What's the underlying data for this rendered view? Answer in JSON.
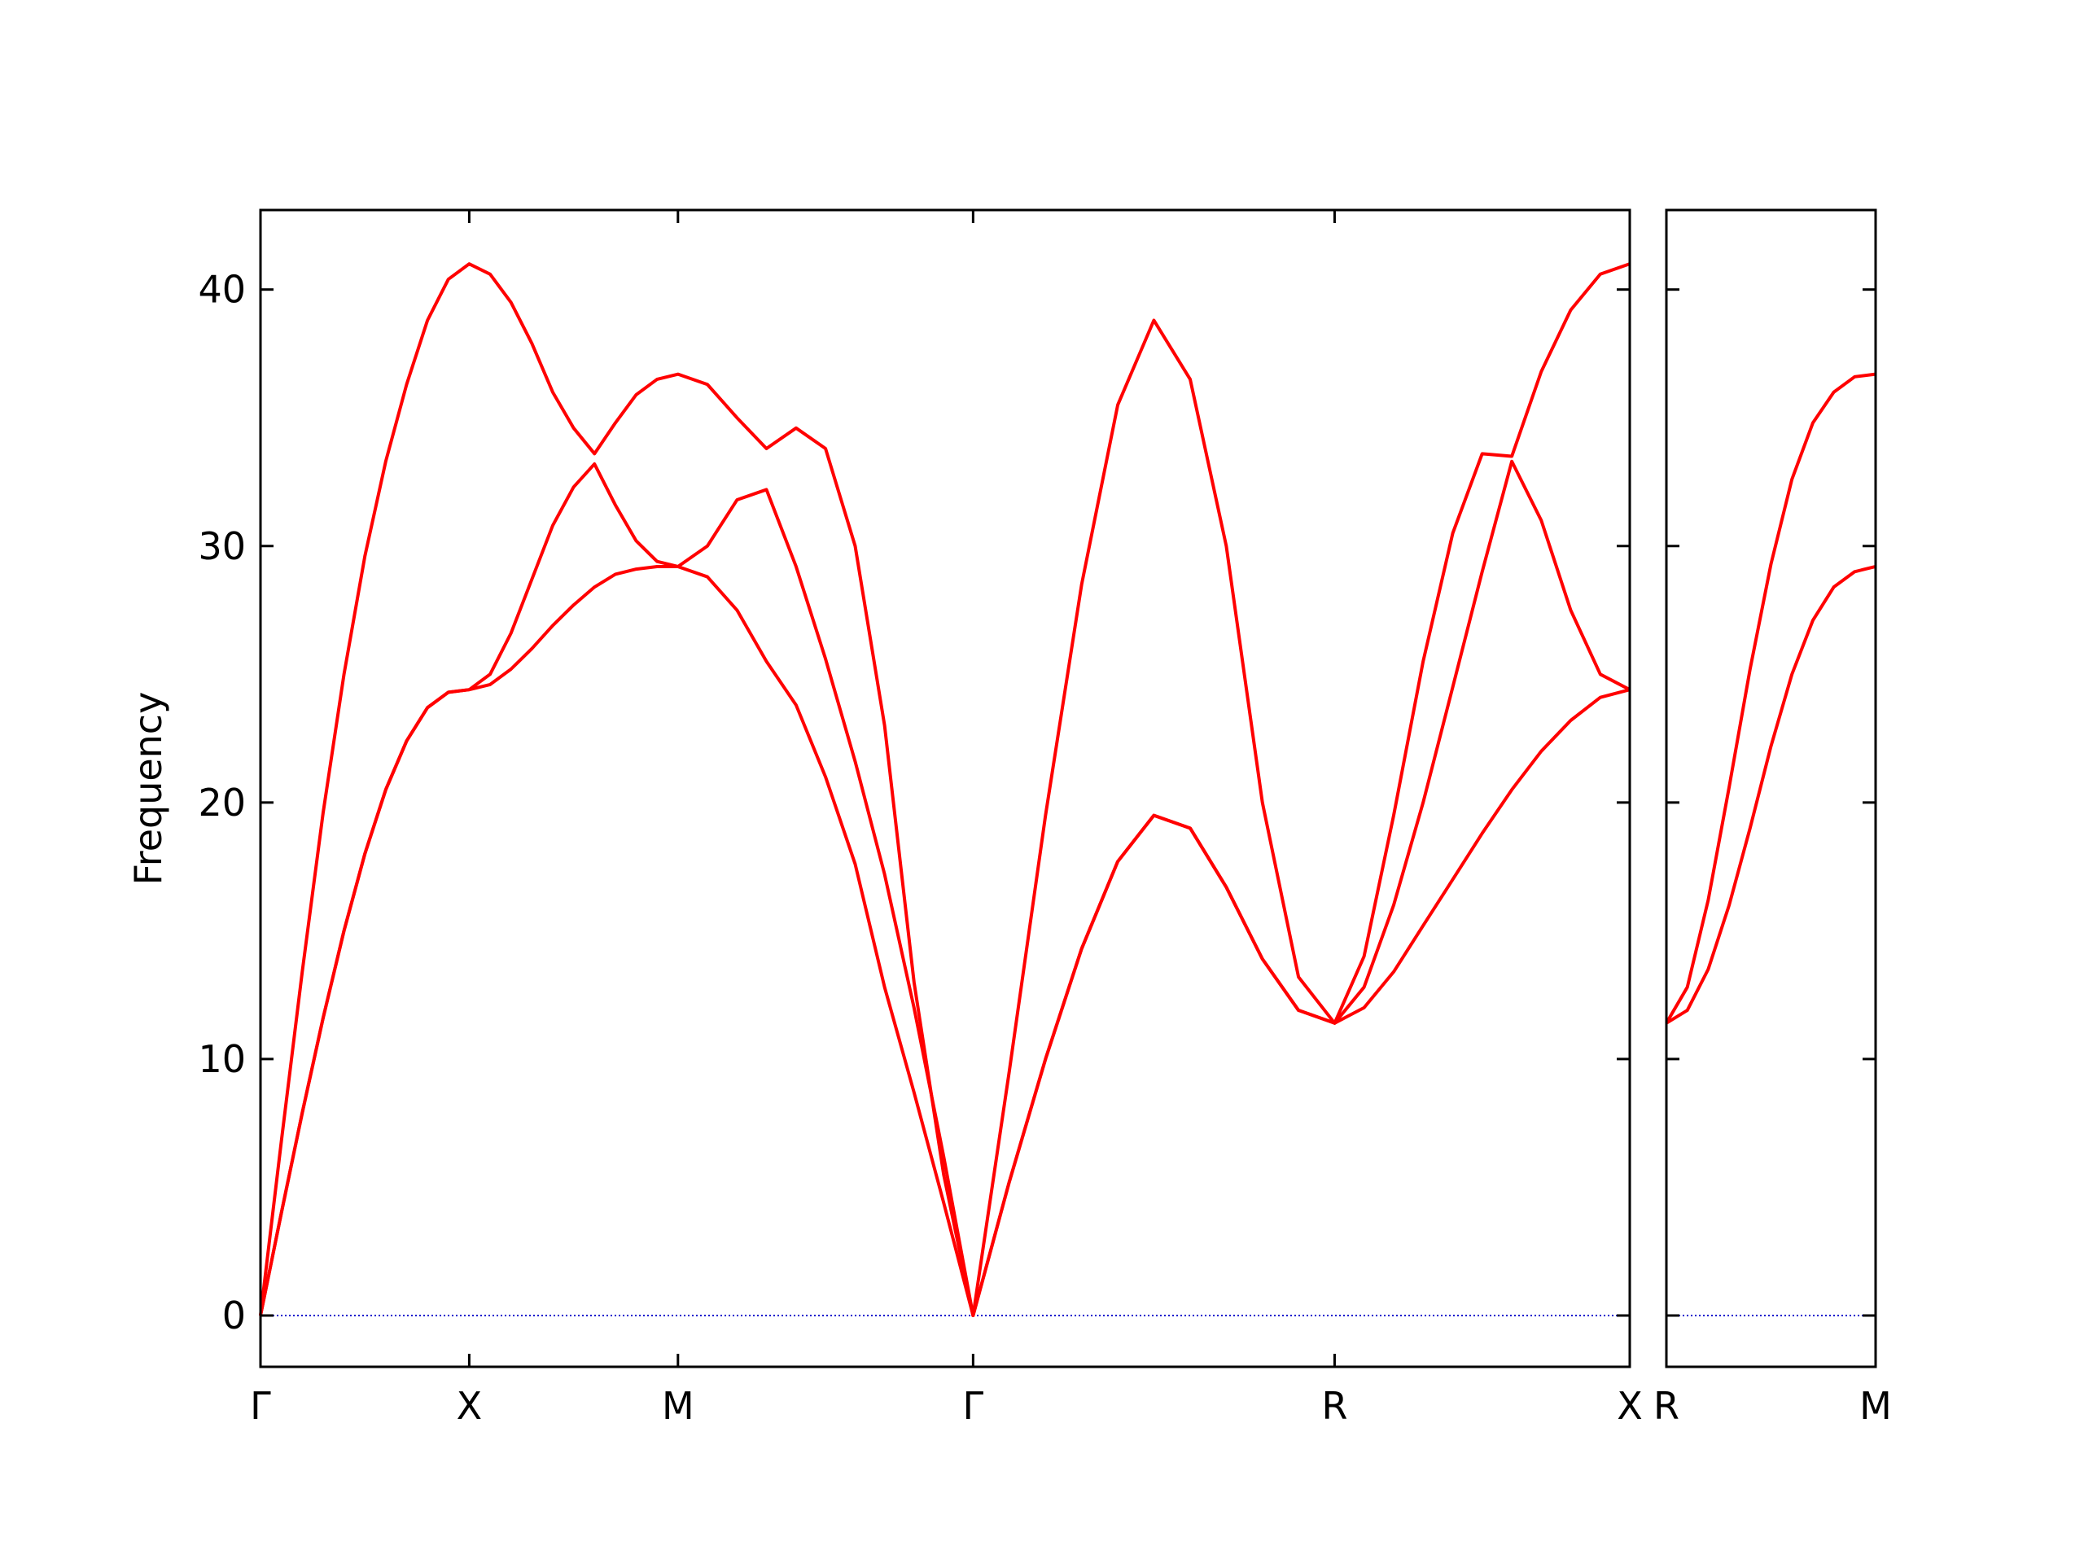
{
  "chart_data": [
    {
      "type": "line",
      "y_label": "Frequency",
      "x": [
        0,
        0.1,
        0.2,
        0.3,
        0.4,
        0.5,
        0.6,
        0.7,
        0.8,
        0.9,
        1,
        1.1,
        1.2,
        1.3,
        1.4,
        1.5,
        1.6,
        1.7,
        1.8,
        1.9,
        2,
        2.141,
        2.283,
        2.424,
        2.566,
        2.707,
        2.849,
        2.99,
        3.131,
        3.273,
        3.414,
        3.587,
        3.761,
        3.934,
        4.107,
        4.28,
        4.454,
        4.627,
        4.8,
        4.973,
        5.146,
        5.287,
        5.429,
        5.57,
        5.712,
        5.853,
        5.995,
        6.136,
        6.277,
        6.419,
        6.56
      ],
      "series": [
        {
          "color": "#ff0000",
          "values": [
            0,
            4.0,
            7.9,
            11.6,
            15.0,
            18.0,
            20.5,
            22.4,
            23.7,
            24.3,
            24.4,
            24.6,
            25.2,
            26.0,
            26.9,
            27.7,
            28.4,
            28.9,
            29.1,
            29.2,
            29.2,
            28.8,
            27.5,
            25.5,
            23.8,
            21.0,
            17.6,
            12.8,
            8.7,
            4.4,
            0,
            5.2,
            10.0,
            14.3,
            17.7,
            19.5,
            19.0,
            16.7,
            13.9,
            11.9,
            11.4,
            12.0,
            13.4,
            15.2,
            17.0,
            18.8,
            20.5,
            22.0,
            23.2,
            24.1,
            24.4
          ]
        },
        {
          "color": "#ff0000",
          "values": [
            0,
            4.0,
            7.9,
            11.6,
            15.0,
            18.0,
            20.5,
            22.4,
            23.7,
            24.3,
            24.4,
            25.0,
            26.6,
            28.7,
            30.8,
            32.3,
            33.2,
            31.6,
            30.2,
            29.4,
            29.2,
            30.0,
            31.8,
            32.2,
            29.2,
            25.6,
            21.6,
            17.2,
            12.0,
            6.2,
            0,
            5.2,
            10.0,
            14.3,
            17.7,
            19.5,
            19.0,
            16.7,
            13.9,
            11.9,
            11.4,
            12.8,
            16.0,
            20.0,
            24.5,
            29.0,
            33.3,
            31.0,
            27.5,
            25.0,
            24.4
          ]
        },
        {
          "color": "#ff0000",
          "values": [
            0,
            6.8,
            13.4,
            19.6,
            25.0,
            29.6,
            33.3,
            36.3,
            38.8,
            40.4,
            41.0,
            40.6,
            39.5,
            37.9,
            36.0,
            34.6,
            33.6,
            34.8,
            35.9,
            36.5,
            36.7,
            36.3,
            35.0,
            33.8,
            34.6,
            33.8,
            30.0,
            23.0,
            13.0,
            5.5,
            0,
            9.5,
            19.5,
            28.5,
            35.5,
            38.8,
            36.5,
            30.0,
            20.0,
            13.2,
            11.4,
            14.0,
            19.5,
            25.5,
            30.5,
            33.6,
            33.5,
            36.8,
            39.2,
            40.6,
            41.0
          ]
        }
      ],
      "xlim": [
        0,
        6.56
      ],
      "ylim": [
        -2,
        43.1
      ],
      "xticks": [
        {
          "value": 0,
          "label": "Γ"
        },
        {
          "value": 1,
          "label": "X"
        },
        {
          "value": 2,
          "label": "M"
        },
        {
          "value": 3.414,
          "label": "Γ"
        },
        {
          "value": 5.146,
          "label": "R"
        },
        {
          "value": 6.56,
          "label": "X"
        }
      ],
      "yticks": [
        0,
        10,
        20,
        30,
        40
      ],
      "show_ytick_labels": true,
      "hline": 0,
      "hline_color": "#0000cc"
    },
    {
      "type": "line",
      "x": [
        0,
        0.1,
        0.2,
        0.3,
        0.4,
        0.5,
        0.6,
        0.7,
        0.8,
        0.9,
        1
      ],
      "series": [
        {
          "color": "#ff0000",
          "values": [
            11.4,
            11.9,
            13.5,
            16.0,
            19.0,
            22.2,
            25.0,
            27.1,
            28.4,
            29.0,
            29.2
          ]
        },
        {
          "color": "#ff0000",
          "values": [
            11.4,
            12.8,
            16.2,
            20.6,
            25.2,
            29.3,
            32.6,
            34.8,
            36.0,
            36.6,
            36.7
          ]
        }
      ],
      "xlim": [
        0,
        1
      ],
      "ylim": [
        -2,
        43.1
      ],
      "xticks": [
        {
          "value": 0,
          "label": "R"
        },
        {
          "value": 1,
          "label": "M"
        }
      ],
      "yticks": [
        0,
        10,
        20,
        30,
        40
      ],
      "show_ytick_labels": false,
      "hline": 0,
      "hline_color": "#0000cc"
    }
  ]
}
